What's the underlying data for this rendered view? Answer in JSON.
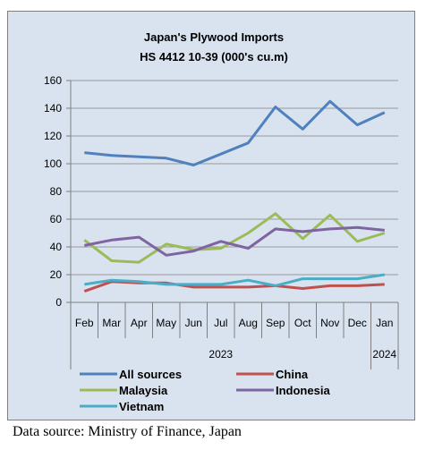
{
  "chart_data": {
    "type": "line",
    "title": "Japan's Plywood Imports",
    "subtitle": "HS 4412 10-39  (000's cu.m)",
    "categories": [
      "Feb",
      "Mar",
      "Apr",
      "May",
      "Jun",
      "Jul",
      "Aug",
      "Sep",
      "Oct",
      "Nov",
      "Dec",
      "Jan"
    ],
    "year_groups": [
      {
        "label": "2023",
        "from": 0,
        "to": 10
      },
      {
        "label": "2024",
        "from": 11,
        "to": 11
      }
    ],
    "ylim": [
      0,
      160
    ],
    "yticks": [
      0,
      20,
      40,
      60,
      80,
      100,
      120,
      140,
      160
    ],
    "grid": true,
    "legend_position": "bottom",
    "series": [
      {
        "name": "All sources",
        "color": "#4f81bd",
        "values": [
          108,
          106,
          105,
          104,
          99,
          107,
          115,
          141,
          125,
          145,
          128,
          137
        ]
      },
      {
        "name": "China",
        "color": "#c0504d",
        "values": [
          8,
          15,
          14,
          14,
          11,
          11,
          11,
          12,
          10,
          12,
          12,
          13
        ]
      },
      {
        "name": "Malaysia",
        "color": "#9bbb59",
        "values": [
          45,
          30,
          29,
          42,
          38,
          39,
          50,
          64,
          46,
          63,
          44,
          50
        ]
      },
      {
        "name": "Indonesia",
        "color": "#8064a2",
        "values": [
          41,
          45,
          47,
          34,
          37,
          44,
          39,
          53,
          51,
          53,
          54,
          52
        ]
      },
      {
        "name": "Vietnam",
        "color": "#4bacc6",
        "values": [
          13,
          16,
          15,
          13,
          13,
          13,
          16,
          12,
          17,
          17,
          17,
          20
        ]
      }
    ]
  },
  "source_note": "Data source: Ministry of Finance, Japan"
}
